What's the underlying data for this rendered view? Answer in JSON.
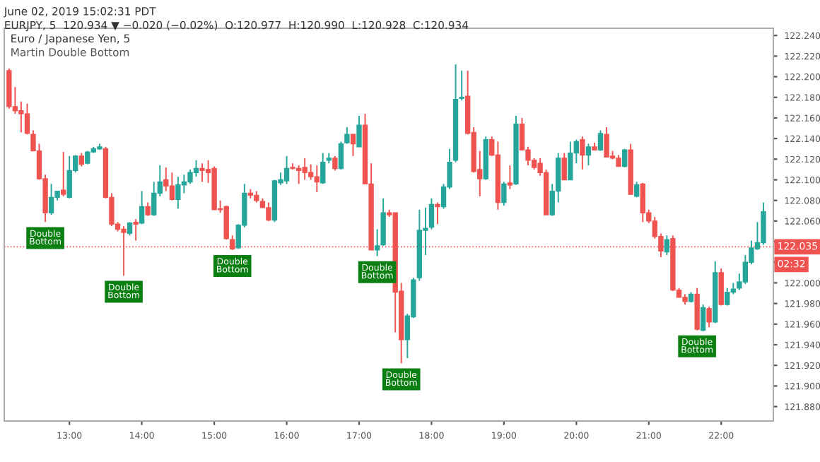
{
  "chart_data": {
    "type": "candlestick",
    "title": "Euro / Japanese Yen, 5",
    "subtitle": "Martin Double Bottom",
    "x": [
      12.167,
      12.25,
      12.333,
      12.417,
      12.5,
      12.583,
      12.667,
      12.75,
      12.833,
      12.917,
      13.0,
      13.083,
      13.167,
      13.25,
      13.333,
      13.417,
      13.5,
      13.583,
      13.667,
      13.75,
      13.833,
      13.917,
      14.0,
      14.083,
      14.167,
      14.25,
      14.333,
      14.417,
      14.5,
      14.583,
      14.667,
      14.75,
      14.833,
      14.917,
      15.0,
      15.083,
      15.167,
      15.25,
      15.333,
      15.417,
      15.5,
      15.583,
      15.667,
      15.75,
      15.833,
      15.917,
      16.0,
      16.083,
      16.167,
      16.25,
      16.333,
      16.417,
      16.5,
      16.583,
      16.667,
      16.75,
      16.833,
      16.917,
      17.0,
      17.083,
      17.167,
      17.25,
      17.333,
      17.417,
      17.5,
      17.583,
      17.667,
      17.75,
      17.833,
      17.917,
      18.0,
      18.083,
      18.167,
      18.25,
      18.333,
      18.417,
      18.5,
      18.583,
      18.667,
      18.75,
      18.833,
      18.917,
      19.0,
      19.083,
      19.167,
      19.25,
      19.333,
      19.417,
      19.5,
      19.583,
      19.667,
      19.75,
      19.833,
      19.917,
      20.0,
      20.083,
      20.167,
      20.25,
      20.333,
      20.417,
      20.5,
      20.583,
      20.667,
      20.75,
      20.833,
      20.917,
      21.0,
      21.083,
      21.167,
      21.25,
      21.333,
      21.417,
      21.5,
      21.583,
      21.667,
      21.75,
      21.833,
      21.917,
      22.0,
      22.083,
      22.167,
      22.25,
      22.333,
      22.417,
      22.5,
      22.583
    ],
    "ohlc": [
      [
        122.206,
        122.208,
        122.169,
        122.171
      ],
      [
        122.171,
        122.19,
        122.164,
        122.167
      ],
      [
        122.167,
        122.176,
        122.146,
        122.164
      ],
      [
        122.164,
        122.174,
        122.144,
        122.145
      ],
      [
        122.144,
        122.148,
        122.128,
        122.128
      ],
      [
        122.128,
        122.135,
        122.1,
        122.101
      ],
      [
        122.101,
        122.105,
        122.059,
        122.068
      ],
      [
        122.068,
        122.096,
        122.066,
        122.083
      ],
      [
        122.083,
        122.089,
        122.08,
        122.089
      ],
      [
        122.09,
        122.127,
        122.084,
        122.086
      ],
      [
        122.083,
        122.123,
        122.082,
        122.109
      ],
      [
        122.109,
        122.124,
        122.107,
        122.123
      ],
      [
        122.123,
        122.126,
        122.113,
        122.115
      ],
      [
        122.116,
        122.128,
        122.115,
        122.127
      ],
      [
        122.127,
        122.132,
        122.126,
        122.13
      ],
      [
        122.13,
        122.135,
        122.129,
        122.132
      ],
      [
        122.13,
        122.132,
        122.082,
        122.083
      ],
      [
        122.083,
        122.087,
        122.055,
        122.057
      ],
      [
        122.057,
        122.059,
        122.05,
        122.052
      ],
      [
        122.052,
        122.055,
        122.007,
        122.049
      ],
      [
        122.048,
        122.059,
        122.046,
        122.058
      ],
      [
        122.059,
        122.062,
        122.041,
        122.057
      ],
      [
        122.058,
        122.089,
        122.057,
        122.074
      ],
      [
        122.074,
        122.078,
        122.065,
        122.066
      ],
      [
        122.066,
        122.098,
        122.065,
        122.087
      ],
      [
        122.087,
        122.114,
        122.084,
        122.098
      ],
      [
        122.1,
        122.112,
        122.089,
        122.094
      ],
      [
        122.094,
        122.107,
        122.08,
        122.081
      ],
      [
        122.081,
        122.103,
        122.072,
        122.095
      ],
      [
        122.095,
        122.105,
        122.087,
        122.098
      ],
      [
        122.098,
        122.11,
        122.096,
        122.107
      ],
      [
        122.107,
        122.119,
        122.103,
        122.111
      ],
      [
        122.111,
        122.116,
        122.098,
        122.109
      ],
      [
        122.11,
        122.119,
        122.097,
        122.107
      ],
      [
        122.111,
        122.113,
        122.071,
        122.071
      ],
      [
        122.072,
        122.08,
        122.068,
        122.071
      ],
      [
        122.074,
        122.075,
        122.042,
        122.043
      ],
      [
        122.042,
        122.046,
        122.032,
        122.033
      ],
      [
        122.034,
        122.057,
        122.033,
        122.056
      ],
      [
        122.056,
        122.096,
        122.054,
        122.087
      ],
      [
        122.087,
        122.091,
        122.082,
        122.085
      ],
      [
        122.085,
        122.089,
        122.078,
        122.08
      ],
      [
        122.079,
        122.082,
        122.073,
        122.073
      ],
      [
        122.073,
        122.078,
        122.06,
        122.061
      ],
      [
        122.061,
        122.1,
        122.059,
        122.099
      ],
      [
        122.097,
        122.107,
        122.095,
        122.1
      ],
      [
        122.099,
        122.123,
        122.096,
        122.111
      ],
      [
        122.112,
        122.116,
        122.11,
        122.111
      ],
      [
        122.111,
        122.114,
        122.096,
        122.109
      ],
      [
        122.112,
        122.121,
        122.1,
        122.107
      ],
      [
        122.107,
        122.115,
        122.1,
        122.103
      ],
      [
        122.103,
        122.114,
        122.088,
        122.098
      ],
      [
        122.097,
        122.126,
        122.096,
        122.117
      ],
      [
        122.119,
        122.126,
        122.116,
        122.121
      ],
      [
        122.121,
        122.123,
        122.109,
        122.111
      ],
      [
        122.111,
        122.137,
        122.11,
        122.135
      ],
      [
        122.136,
        122.151,
        122.135,
        122.144
      ],
      [
        122.144,
        122.144,
        122.123,
        122.135
      ],
      [
        122.132,
        122.162,
        122.132,
        122.153
      ],
      [
        122.153,
        122.164,
        122.096,
        122.096
      ],
      [
        122.096,
        122.116,
        122.032,
        122.032
      ],
      [
        122.032,
        122.052,
        122.026,
        122.036
      ],
      [
        122.037,
        122.082,
        122.036,
        122.068
      ],
      [
        122.068,
        122.071,
        122.064,
        122.066
      ],
      [
        122.068,
        122.068,
        121.952,
        121.991
      ],
      [
        121.992,
        122.0,
        121.922,
        121.945
      ],
      [
        121.945,
        121.97,
        121.927,
        121.968
      ],
      [
        121.967,
        122.005,
        121.966,
        122.003
      ],
      [
        122.005,
        122.071,
        122.002,
        122.051
      ],
      [
        122.051,
        122.073,
        122.027,
        122.053
      ],
      [
        122.054,
        122.082,
        122.052,
        122.076
      ],
      [
        122.076,
        122.078,
        122.057,
        122.074
      ],
      [
        122.074,
        122.096,
        122.072,
        122.093
      ],
      [
        122.093,
        122.13,
        122.091,
        122.117
      ],
      [
        122.119,
        122.212,
        122.117,
        122.178
      ],
      [
        122.179,
        122.206,
        122.177,
        122.18
      ],
      [
        122.181,
        122.206,
        122.144,
        122.145
      ],
      [
        122.146,
        122.151,
        122.107,
        122.108
      ],
      [
        122.11,
        122.128,
        122.084,
        122.101
      ],
      [
        122.101,
        122.142,
        122.1,
        122.139
      ],
      [
        122.139,
        122.142,
        122.123,
        122.124
      ],
      [
        122.124,
        122.137,
        122.071,
        122.078
      ],
      [
        122.078,
        122.098,
        122.075,
        122.096
      ],
      [
        122.097,
        122.114,
        122.091,
        122.095
      ],
      [
        122.096,
        122.162,
        122.095,
        122.154
      ],
      [
        122.154,
        122.16,
        122.129,
        122.129
      ],
      [
        122.129,
        122.132,
        122.114,
        122.119
      ],
      [
        122.119,
        122.121,
        122.11,
        122.112
      ],
      [
        122.116,
        122.121,
        122.104,
        122.107
      ],
      [
        122.107,
        122.11,
        122.066,
        122.066
      ],
      [
        122.066,
        122.096,
        122.065,
        122.089
      ],
      [
        122.089,
        122.126,
        122.078,
        122.121
      ],
      [
        122.121,
        122.126,
        122.1,
        122.1
      ],
      [
        122.1,
        122.137,
        122.1,
        122.126
      ],
      [
        122.126,
        122.139,
        122.116,
        122.137
      ],
      [
        122.139,
        122.142,
        122.11,
        122.124
      ],
      [
        122.124,
        122.135,
        122.114,
        122.132
      ],
      [
        122.132,
        122.136,
        122.129,
        122.129
      ],
      [
        122.129,
        122.148,
        122.128,
        122.145
      ],
      [
        122.144,
        122.151,
        122.122,
        122.122
      ],
      [
        122.123,
        122.128,
        122.12,
        122.121
      ],
      [
        122.121,
        122.124,
        122.113,
        122.113
      ],
      [
        122.113,
        122.13,
        122.112,
        122.129
      ],
      [
        122.129,
        122.135,
        122.086,
        122.086
      ],
      [
        122.084,
        122.098,
        122.083,
        122.095
      ],
      [
        122.096,
        122.097,
        122.059,
        122.068
      ],
      [
        122.068,
        122.071,
        122.058,
        122.06
      ],
      [
        122.06,
        122.064,
        122.043,
        122.045
      ],
      [
        122.045,
        122.048,
        122.025,
        122.031
      ],
      [
        122.03,
        122.046,
        122.027,
        122.042
      ],
      [
        122.043,
        122.046,
        121.992,
        121.993
      ],
      [
        121.993,
        121.995,
        121.986,
        121.986
      ],
      [
        121.986,
        121.989,
        121.979,
        121.982
      ],
      [
        121.982,
        121.991,
        121.981,
        121.989
      ],
      [
        121.989,
        121.995,
        121.954,
        121.955
      ],
      [
        121.954,
        121.979,
        121.953,
        121.976
      ],
      [
        121.975,
        121.977,
        121.957,
        121.962
      ],
      [
        121.962,
        122.021,
        121.961,
        122.01
      ],
      [
        122.01,
        122.014,
        121.978,
        121.979
      ],
      [
        121.979,
        121.995,
        121.978,
        121.991
      ],
      [
        121.991,
        122.0,
        121.989,
        121.994
      ],
      [
        121.995,
        122.009,
        121.993,
        122.001
      ],
      [
        122.001,
        122.027,
        121.999,
        122.02
      ],
      [
        122.02,
        122.041,
        122.018,
        122.034
      ],
      [
        122.033,
        122.059,
        122.032,
        122.039
      ],
      [
        122.039,
        122.078,
        122.037,
        122.069
      ]
    ],
    "xlim": [
      12.1,
      22.72
    ],
    "ylim": [
      121.866,
      122.247
    ],
    "xticks": [
      {
        "value": 13,
        "label": "13:00"
      },
      {
        "value": 14,
        "label": "14:00"
      },
      {
        "value": 15,
        "label": "15:00"
      },
      {
        "value": 16,
        "label": "16:00"
      },
      {
        "value": 17,
        "label": "17:00"
      },
      {
        "value": 18,
        "label": "18:00"
      },
      {
        "value": 19,
        "label": "19:00"
      },
      {
        "value": 20,
        "label": "20:00"
      },
      {
        "value": 21,
        "label": "21:00"
      },
      {
        "value": 22,
        "label": "22:00"
      }
    ],
    "yticks": [
      {
        "value": 121.88,
        "label": "121.880"
      },
      {
        "value": 121.9,
        "label": "121.900"
      },
      {
        "value": 121.92,
        "label": "121.920"
      },
      {
        "value": 121.94,
        "label": "121.940"
      },
      {
        "value": 121.96,
        "label": "121.960"
      },
      {
        "value": 121.98,
        "label": "121.980"
      },
      {
        "value": 122.0,
        "label": "122.000"
      },
      {
        "value": 122.02,
        "label": null
      },
      {
        "value": 122.04,
        "label": null
      },
      {
        "value": 122.06,
        "label": "122.060"
      },
      {
        "value": 122.08,
        "label": "122.080"
      },
      {
        "value": 122.1,
        "label": "122.100"
      },
      {
        "value": 122.12,
        "label": "122.120"
      },
      {
        "value": 122.14,
        "label": "122.140"
      },
      {
        "value": 122.16,
        "label": "122.160"
      },
      {
        "value": 122.18,
        "label": "122.180"
      },
      {
        "value": 122.2,
        "label": "122.200"
      },
      {
        "value": 122.22,
        "label": "122.220"
      },
      {
        "value": 122.24,
        "label": "122.240"
      }
    ],
    "ref_lines": [
      {
        "axis": "y",
        "value": 122.035,
        "label": "122.035",
        "color": "#ef5350",
        "line_style": "dotted"
      }
    ],
    "annotations": [
      "June 02, 2019 15:02:31 PDT",
      "EURJPY, 5  120.934 ▼ −0.020 (−0.02%)  O:120.977  H:120.990  L:120.928  C:120.934",
      "02:32",
      {
        "text": "Double\nBottom",
        "x": 12.667,
        "y": 122.059
      },
      {
        "text": "Double\nBottom",
        "x": 13.75,
        "y": 122.007
      },
      {
        "text": "Double\nBottom",
        "x": 15.25,
        "y": 122.032
      },
      {
        "text": "Double\nBottom",
        "x": 17.25,
        "y": 122.026
      },
      {
        "text": "Double\nBottom",
        "x": 17.583,
        "y": 121.922
      },
      {
        "text": "Double\nBottom",
        "x": 21.667,
        "y": 121.954
      }
    ]
  }
}
